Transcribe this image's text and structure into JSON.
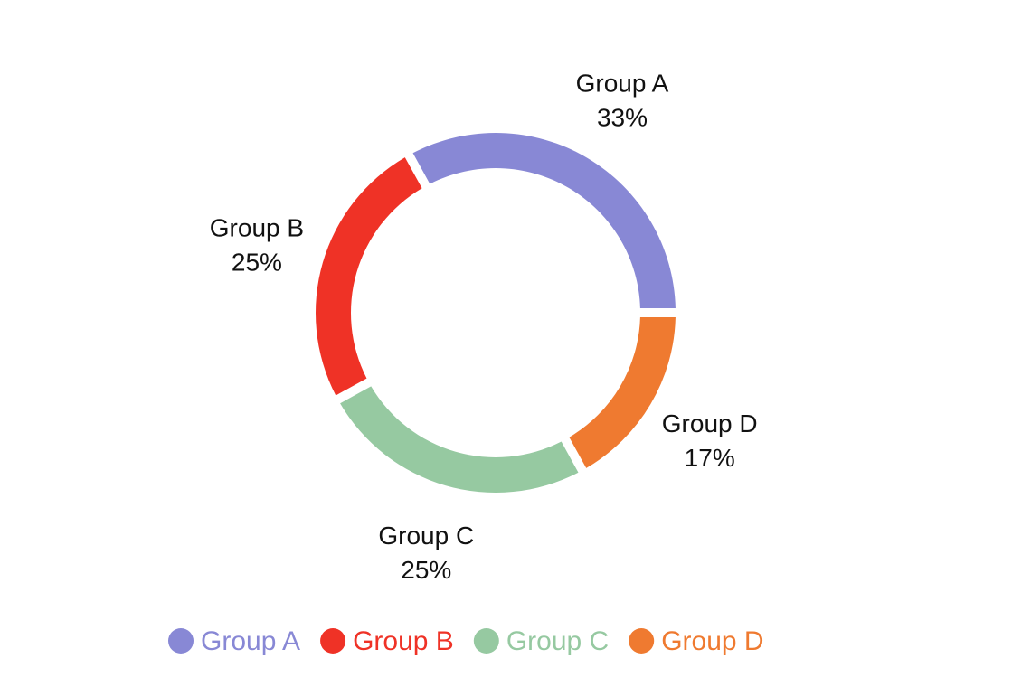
{
  "chart_data": {
    "type": "pie",
    "variant": "donut",
    "title": "",
    "legend_position": "bottom",
    "slices": [
      {
        "name": "Group A",
        "value": 33,
        "label": "33%",
        "color": "#8888d5"
      },
      {
        "name": "Group D",
        "value": 17,
        "label": "17%",
        "color": "#ef7a30"
      },
      {
        "name": "Group C",
        "value": 25,
        "label": "25%",
        "color": "#96c9a1"
      },
      {
        "name": "Group B",
        "value": 25,
        "label": "25%",
        "color": "#ef3226"
      }
    ],
    "legend": [
      {
        "name": "Group A",
        "color": "#8888d5"
      },
      {
        "name": "Group B",
        "color": "#ef3226"
      },
      {
        "name": "Group C",
        "color": "#96c9a1"
      },
      {
        "name": "Group D",
        "color": "#ef7a30"
      }
    ]
  }
}
